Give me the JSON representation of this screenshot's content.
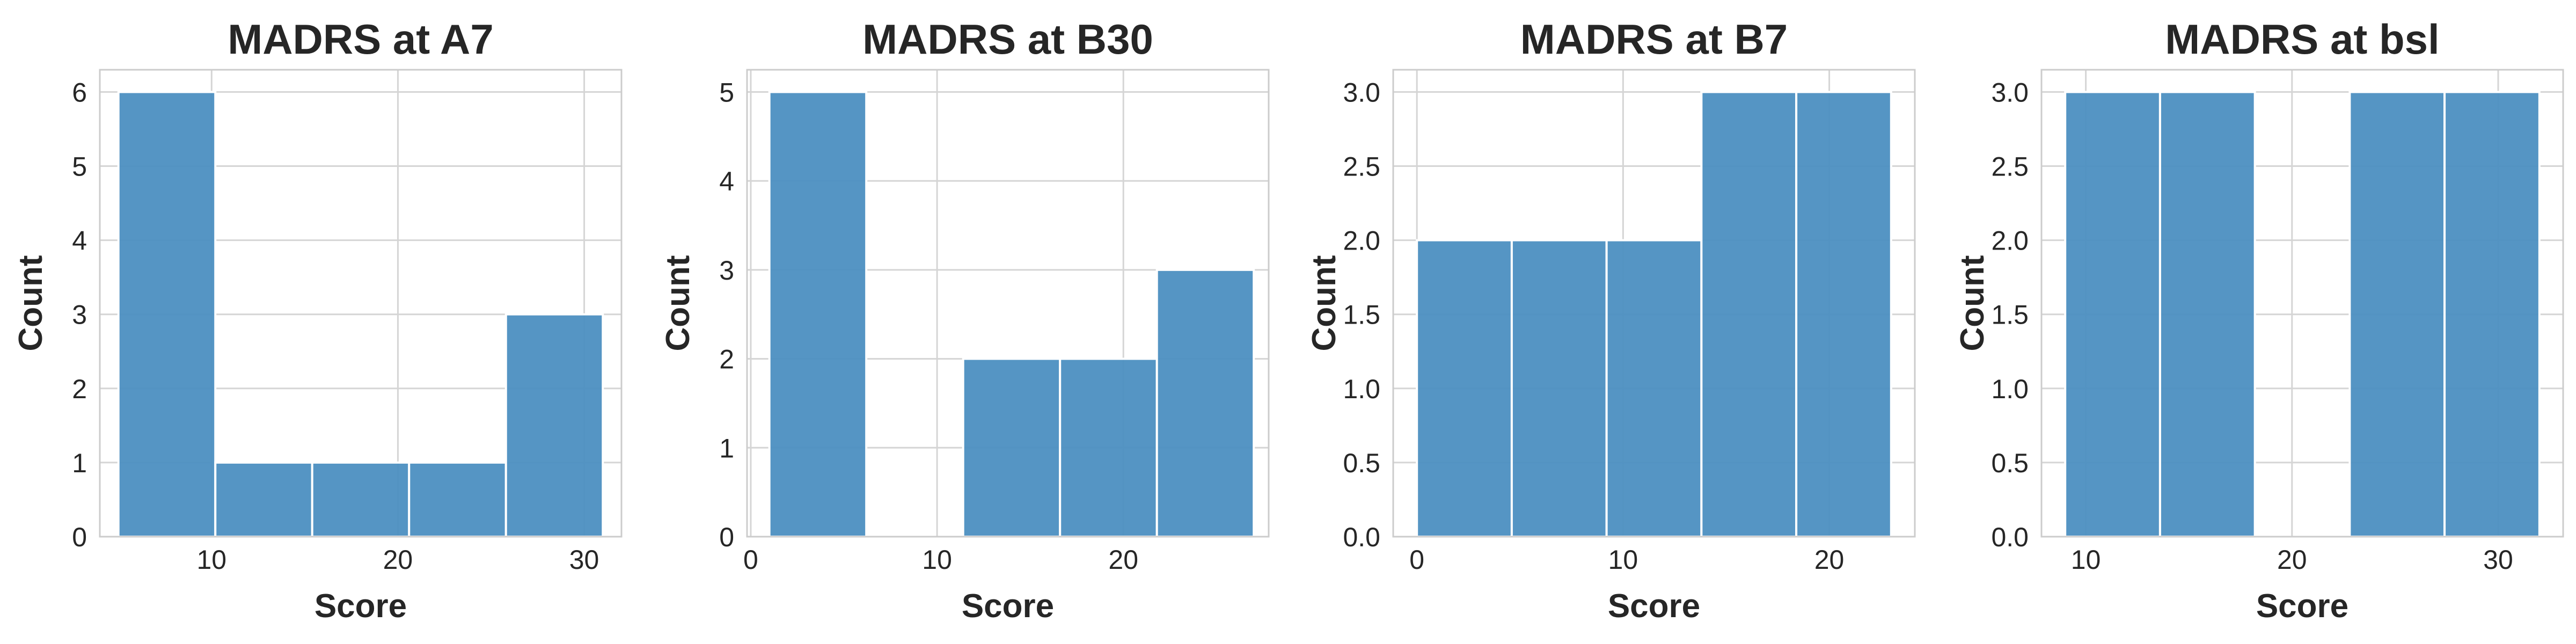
{
  "chart_data": [
    {
      "type": "histogram",
      "title": "MADRS at A7",
      "xlabel": "Score",
      "ylabel": "Count",
      "xlim": [
        4,
        32
      ],
      "ylim": [
        0,
        6.3
      ],
      "xticks": [
        10,
        20,
        30
      ],
      "yticks": [
        0,
        1,
        2,
        3,
        4,
        5,
        6
      ],
      "bins": [
        {
          "start": 5.0,
          "end": 10.2,
          "count": 6
        },
        {
          "start": 10.2,
          "end": 15.4,
          "count": 1
        },
        {
          "start": 15.4,
          "end": 20.6,
          "count": 1
        },
        {
          "start": 20.6,
          "end": 25.8,
          "count": 1
        },
        {
          "start": 25.8,
          "end": 31.0,
          "count": 3
        }
      ],
      "grid": true,
      "color": "#4c8fc1"
    },
    {
      "type": "histogram",
      "title": "MADRS at B30",
      "xlabel": "Score",
      "ylabel": "Count",
      "xlim": [
        -0.2,
        27.8
      ],
      "ylim": [
        0,
        5.25
      ],
      "xticks": [
        0,
        10,
        20
      ],
      "yticks": [
        0,
        1,
        2,
        3,
        4,
        5
      ],
      "bins": [
        {
          "start": 1.0,
          "end": 6.2,
          "count": 5
        },
        {
          "start": 6.2,
          "end": 11.4,
          "count": 0
        },
        {
          "start": 11.4,
          "end": 16.6,
          "count": 2
        },
        {
          "start": 16.6,
          "end": 21.8,
          "count": 2
        },
        {
          "start": 21.8,
          "end": 27.0,
          "count": 3
        }
      ],
      "grid": true,
      "color": "#4c8fc1"
    },
    {
      "type": "histogram",
      "title": "MADRS at B7",
      "xlabel": "Score",
      "ylabel": "Count",
      "xlim": [
        -1.15,
        24.15
      ],
      "ylim": [
        0,
        3.15
      ],
      "xticks": [
        0,
        10,
        20
      ],
      "yticks": [
        "0.0",
        "0.5",
        "1.0",
        "1.5",
        "2.0",
        "2.5",
        "3.0"
      ],
      "bins": [
        {
          "start": 0.0,
          "end": 4.6,
          "count": 2
        },
        {
          "start": 4.6,
          "end": 9.2,
          "count": 2
        },
        {
          "start": 9.2,
          "end": 13.8,
          "count": 2
        },
        {
          "start": 13.8,
          "end": 18.4,
          "count": 3
        },
        {
          "start": 18.4,
          "end": 23.0,
          "count": 3
        }
      ],
      "grid": true,
      "color": "#4c8fc1"
    },
    {
      "type": "histogram",
      "title": "MADRS at bsl",
      "xlabel": "Score",
      "ylabel": "Count",
      "xlim": [
        7.85,
        33.15
      ],
      "ylim": [
        0,
        3.15
      ],
      "xticks": [
        10,
        20,
        30
      ],
      "yticks": [
        "0.0",
        "0.5",
        "1.0",
        "1.5",
        "2.0",
        "2.5",
        "3.0"
      ],
      "bins": [
        {
          "start": 9.0,
          "end": 13.6,
          "count": 3
        },
        {
          "start": 13.6,
          "end": 18.2,
          "count": 3
        },
        {
          "start": 18.2,
          "end": 22.8,
          "count": 0
        },
        {
          "start": 22.8,
          "end": 27.4,
          "count": 3
        },
        {
          "start": 27.4,
          "end": 32.0,
          "count": 3
        }
      ],
      "grid": true,
      "color": "#4c8fc1"
    }
  ]
}
